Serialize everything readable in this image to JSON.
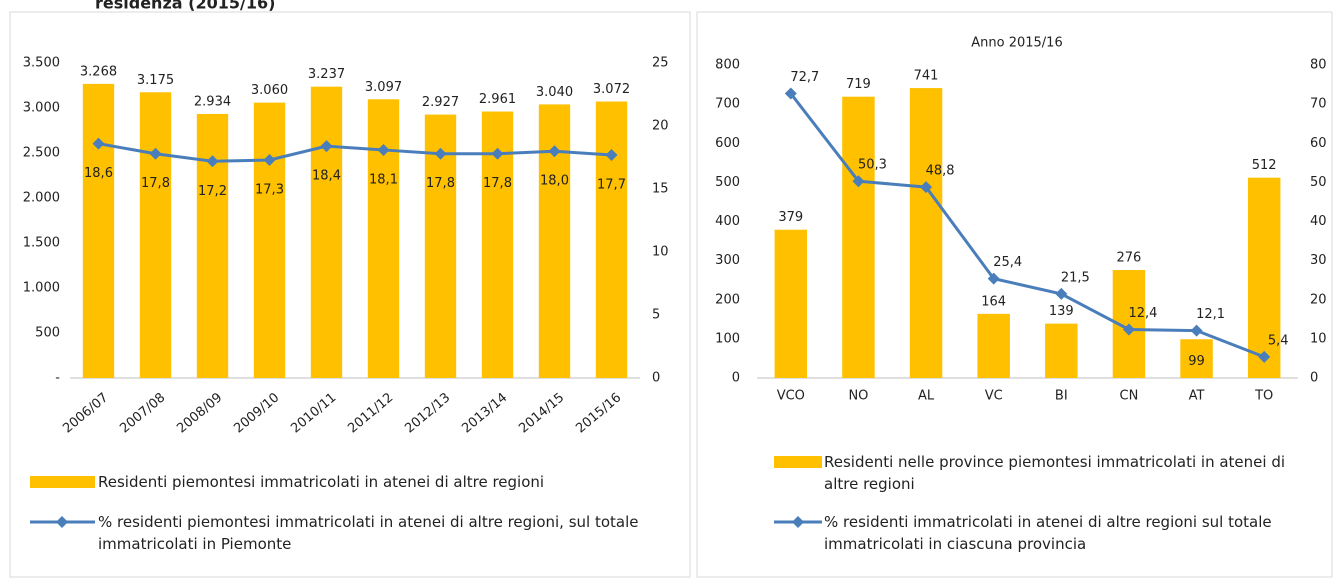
{
  "heading": "residenza (2015/16)",
  "chart_data": [
    {
      "type": "combo",
      "categories": [
        "2006/07",
        "2007/08",
        "2008/09",
        "2009/10",
        "2010/11",
        "2011/12",
        "2012/13",
        "2013/14",
        "2014/15",
        "2015/16"
      ],
      "series": [
        {
          "name": "Residenti piemontesi immatricolati  in atenei di altre regioni",
          "kind": "bar",
          "color": "#ffc000",
          "values": [
            3268,
            3175,
            2934,
            3060,
            3237,
            3097,
            2927,
            2961,
            3040,
            3072
          ],
          "value_labels": [
            "3.268",
            "3.175",
            "2.934",
            "3.060",
            "3.237",
            "3.097",
            "2.927",
            "2.961",
            "3.040",
            "3.072"
          ]
        },
        {
          "name": "% residenti piemontesi immatricolati in atenei di altre regioni, sul totale immatricolati in Piemonte",
          "kind": "line",
          "axis": "y2",
          "color": "#4a7ebb",
          "values": [
            18.6,
            17.8,
            17.2,
            17.3,
            18.4,
            18.1,
            17.8,
            17.8,
            18.0,
            17.7
          ],
          "value_labels": [
            "18,6",
            "17,8",
            "17,2",
            "17,3",
            "18,4",
            "18,1",
            "17,8",
            "17,8",
            "18,0",
            "17,7"
          ]
        }
      ],
      "ylim": [
        0,
        3500
      ],
      "yticks": [
        {
          "value": 0,
          "label": "-"
        },
        500,
        {
          "value": 1000,
          "label": "1.000"
        },
        {
          "value": 1500,
          "label": "1.500"
        },
        {
          "value": 2000,
          "label": "2.000"
        },
        {
          "value": 2500,
          "label": "2.500"
        },
        {
          "value": 3000,
          "label": "3.000"
        },
        {
          "value": 3500,
          "label": "3.500"
        }
      ],
      "y2lim": [
        0,
        25
      ],
      "y2ticks": [
        0,
        5,
        10,
        15,
        20,
        25
      ]
    },
    {
      "type": "combo",
      "title": "Anno 2015/16",
      "categories": [
        "VCO",
        "NO",
        "AL",
        "VC",
        "BI",
        "CN",
        "AT",
        "TO"
      ],
      "series": [
        {
          "name": "Residenti nelle province piemontesi immatricolati  in atenei di altre regioni",
          "kind": "bar",
          "color": "#ffc000",
          "values": [
            379,
            719,
            741,
            164,
            139,
            276,
            99,
            512
          ]
        },
        {
          "name": "% residenti immatricolati in atenei di altre regioni sul totale immatricolati in ciascuna provincia",
          "kind": "line",
          "axis": "y2",
          "color": "#4a7ebb",
          "values": [
            72.7,
            50.3,
            48.8,
            25.4,
            21.5,
            12.4,
            12.1,
            5.4
          ],
          "value_labels": [
            "72,7",
            "50,3",
            "48,8",
            "25,4",
            "21,5",
            "12,4",
            "12,1",
            "5,4"
          ]
        }
      ],
      "ylim": [
        0,
        800
      ],
      "yticks": [
        0,
        100,
        200,
        300,
        400,
        500,
        600,
        700,
        800
      ],
      "y2lim": [
        0,
        80
      ],
      "y2ticks": [
        0,
        10,
        20,
        30,
        40,
        50,
        60,
        70,
        80
      ]
    }
  ]
}
